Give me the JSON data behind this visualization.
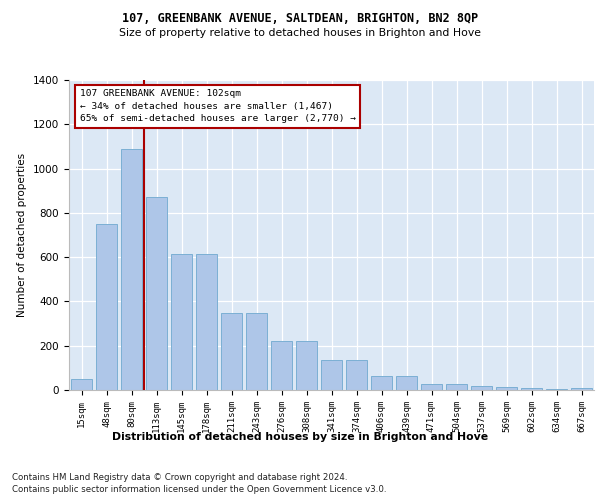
{
  "title1": "107, GREENBANK AVENUE, SALTDEAN, BRIGHTON, BN2 8QP",
  "title2": "Size of property relative to detached houses in Brighton and Hove",
  "xlabel": "Distribution of detached houses by size in Brighton and Hove",
  "ylabel": "Number of detached properties",
  "categories": [
    "15sqm",
    "48sqm",
    "80sqm",
    "113sqm",
    "145sqm",
    "178sqm",
    "211sqm",
    "243sqm",
    "276sqm",
    "308sqm",
    "341sqm",
    "374sqm",
    "406sqm",
    "439sqm",
    "471sqm",
    "504sqm",
    "537sqm",
    "569sqm",
    "602sqm",
    "634sqm",
    "667sqm"
  ],
  "values": [
    50,
    750,
    1090,
    870,
    615,
    615,
    350,
    350,
    220,
    220,
    135,
    135,
    65,
    65,
    25,
    25,
    20,
    15,
    10,
    5,
    10
  ],
  "bar_color": "#aec6e8",
  "bar_edge_color": "#7bafd4",
  "annotation_title": "107 GREENBANK AVENUE: 102sqm",
  "annotation_line1": "← 34% of detached houses are smaller (1,467)",
  "annotation_line2": "65% of semi-detached houses are larger (2,770) →",
  "vline_color": "#aa0000",
  "ylim": [
    0,
    1400
  ],
  "yticks": [
    0,
    200,
    400,
    600,
    800,
    1000,
    1200,
    1400
  ],
  "footnote1": "Contains HM Land Registry data © Crown copyright and database right 2024.",
  "footnote2": "Contains public sector information licensed under the Open Government Licence v3.0.",
  "bg_color": "#dce8f5",
  "fig_bg": "#ffffff"
}
